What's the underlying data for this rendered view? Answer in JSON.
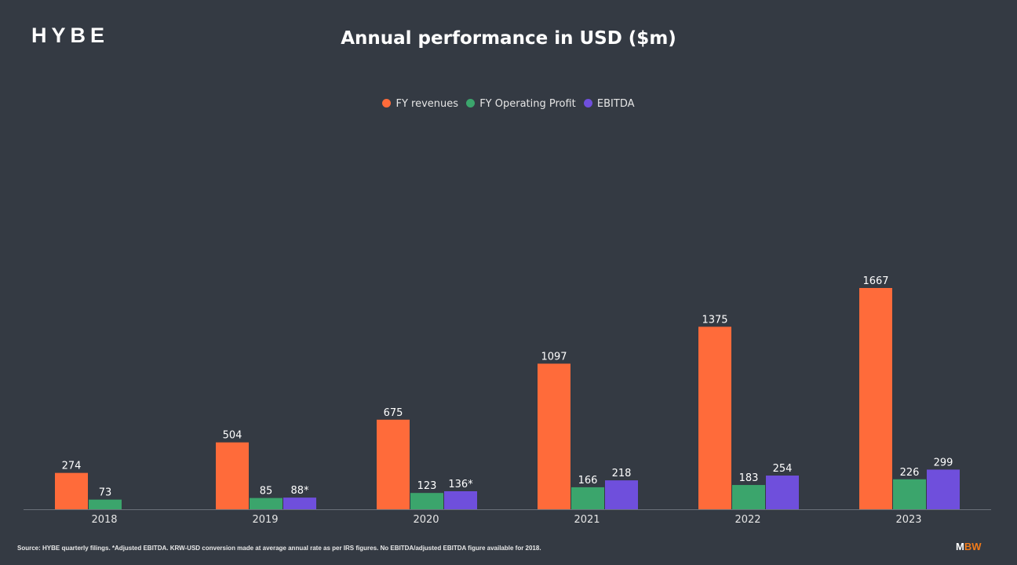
{
  "logo": "HYBE",
  "brand": {
    "m": "M",
    "bw": "BW"
  },
  "source": "Source: HYBE quarterly filings. *Adjusted EBITDA. KRW-USD conversion made at average annual rate as per IRS figures. No EBITDA/adjusted EBITDA figure available for 2018.",
  "chart_data": {
    "type": "bar",
    "title": "Annual performance in USD ($m)",
    "categories": [
      "2018",
      "2019",
      "2020",
      "2021",
      "2022",
      "2023"
    ],
    "legend_position": "top",
    "grid": false,
    "ylim": [
      0,
      1667
    ],
    "series": [
      {
        "name": "FY revenues",
        "color": "#ff6b3a",
        "values": [
          274,
          504,
          675,
          1097,
          1375,
          1667
        ],
        "labels": [
          "274",
          "504",
          "675",
          "1097",
          "1375",
          "1667"
        ]
      },
      {
        "name": "FY Operating Profit",
        "color": "#3ba56c",
        "values": [
          73,
          85,
          123,
          166,
          183,
          226
        ],
        "labels": [
          "73",
          "85",
          "123",
          "166",
          "183",
          "226"
        ]
      },
      {
        "name": "EBITDA",
        "color": "#6f4fdc",
        "values": [
          null,
          88,
          136,
          218,
          254,
          299
        ],
        "labels": [
          "",
          "88*",
          "136*",
          "218",
          "254",
          "299"
        ]
      }
    ]
  }
}
